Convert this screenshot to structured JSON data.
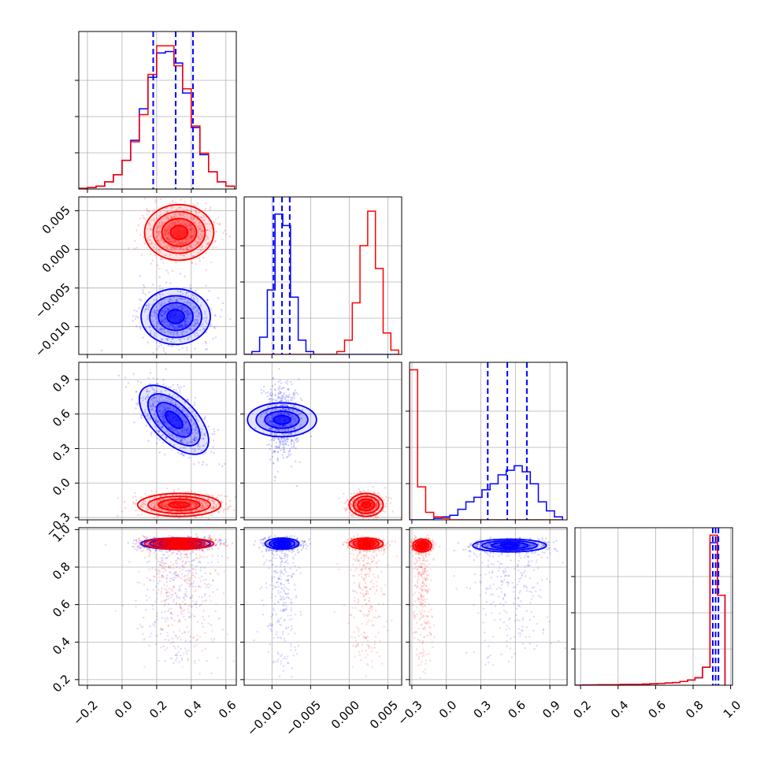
{
  "colors": {
    "series_a": "#0000ff",
    "series_b": "#ff0000",
    "grid": "#b0b0b0",
    "frame": "#000000"
  },
  "chart_data": {
    "type": "scatter",
    "layout": "corner-plot",
    "grid": true,
    "series": [
      {
        "color": "#0000ff",
        "role": "blue posterior (contours, scatter, histograms, dashed quantile lines)"
      },
      {
        "color": "#ff0000",
        "role": "red posterior (contours, scatter, histograms)"
      }
    ],
    "variables": [
      {
        "range": [
          -0.25,
          0.66
        ],
        "ticks": [
          -0.2,
          0.0,
          0.2,
          0.4,
          0.6
        ],
        "tick_labels": [
          "−0.2",
          "0.0",
          "0.2",
          "0.4",
          "0.6"
        ]
      },
      {
        "range": [
          -0.0136,
          0.0068
        ],
        "ticks": [
          -0.01,
          -0.005,
          0.0,
          0.005
        ],
        "tick_labels": [
          "−0.010",
          "−0.005",
          "0.000",
          "0.005"
        ]
      },
      {
        "range": [
          -0.32,
          1.05
        ],
        "ticks": [
          -0.3,
          0.0,
          0.3,
          0.6,
          0.9
        ],
        "tick_labels": [
          "−0.3",
          "0.0",
          "0.3",
          "0.6",
          "0.9"
        ]
      },
      {
        "range": [
          0.17,
          1.01
        ],
        "ticks": [
          0.2,
          0.4,
          0.6,
          0.8,
          1.0
        ],
        "tick_labels": [
          "0.2",
          "0.4",
          "0.6",
          "0.8",
          "1.0"
        ]
      }
    ],
    "marginals": [
      {
        "edges": [
          -0.25,
          -0.2,
          -0.15,
          -0.1,
          -0.05,
          0.0,
          0.05,
          0.1,
          0.15,
          0.2,
          0.25,
          0.3,
          0.35,
          0.4,
          0.45,
          0.5,
          0.55,
          0.6,
          0.65
        ],
        "counts_a": [
          0.005,
          0.01,
          0.02,
          0.05,
          0.1,
          0.2,
          0.34,
          0.56,
          0.78,
          0.95,
          0.96,
          0.88,
          0.67,
          0.43,
          0.24,
          0.12,
          0.05,
          0.02
        ],
        "counts_b": [
          0.005,
          0.01,
          0.02,
          0.05,
          0.1,
          0.2,
          0.33,
          0.52,
          0.8,
          1.0,
          1.0,
          0.86,
          0.7,
          0.44,
          0.25,
          0.12,
          0.05,
          0.02
        ],
        "quantiles": [
          0.18,
          0.31,
          0.41
        ],
        "ymax": 1.1
      },
      {
        "edges": [
          -0.0136,
          -0.0126,
          -0.0116,
          -0.0106,
          -0.0096,
          -0.0086,
          -0.0076,
          -0.0066,
          -0.0056,
          -0.0046,
          -0.0036,
          -0.0026,
          -0.0016,
          -0.0006,
          0.0004,
          0.0014,
          0.0024,
          0.0034,
          0.0044,
          0.0054,
          0.0064
        ],
        "counts_a": [
          0.0,
          0.02,
          0.12,
          0.45,
          0.98,
          0.9,
          0.4,
          0.1,
          0.02,
          0,
          0,
          0,
          0,
          0,
          0,
          0,
          0,
          0,
          0,
          0
        ],
        "counts_b": [
          0,
          0,
          0,
          0,
          0,
          0,
          0,
          0,
          0,
          0,
          0,
          0,
          0.02,
          0.1,
          0.36,
          0.76,
          1.0,
          0.6,
          0.15,
          0.03
        ],
        "quantiles": [
          -0.0098,
          -0.0087,
          -0.0077
        ],
        "ymax": 1.1
      },
      {
        "edges": [
          -0.32,
          -0.25,
          -0.18,
          -0.11,
          -0.04,
          0.03,
          0.1,
          0.17,
          0.24,
          0.31,
          0.38,
          0.45,
          0.52,
          0.59,
          0.66,
          0.73,
          0.8,
          0.87,
          0.94,
          1.01
        ],
        "counts_a": [
          0,
          0,
          0,
          0.01,
          0.02,
          0.03,
          0.07,
          0.12,
          0.15,
          0.2,
          0.24,
          0.3,
          0.33,
          0.36,
          0.32,
          0.24,
          0.12,
          0.06,
          0.02
        ],
        "counts_b": [
          1.0,
          0.22,
          0.05,
          0.02,
          0.01,
          0,
          0,
          0,
          0,
          0,
          0,
          0,
          0,
          0,
          0,
          0,
          0,
          0,
          0
        ],
        "quantiles": [
          0.36,
          0.53,
          0.7
        ],
        "ymax": 1.05
      },
      {
        "edges": [
          0.17,
          0.21,
          0.25,
          0.29,
          0.33,
          0.37,
          0.41,
          0.45,
          0.49,
          0.53,
          0.57,
          0.61,
          0.65,
          0.69,
          0.73,
          0.77,
          0.81,
          0.85,
          0.89,
          0.93,
          0.97
        ],
        "counts_a": [
          0.0,
          0.002,
          0.002,
          0.003,
          0.003,
          0.004,
          0.005,
          0.006,
          0.006,
          0.008,
          0.01,
          0.012,
          0.015,
          0.018,
          0.025,
          0.035,
          0.05,
          0.12,
          0.95,
          0.6
        ],
        "counts_b": [
          0.0,
          0.002,
          0.002,
          0.003,
          0.003,
          0.004,
          0.005,
          0.006,
          0.006,
          0.008,
          0.01,
          0.012,
          0.015,
          0.018,
          0.025,
          0.035,
          0.05,
          0.12,
          1.0,
          0.6
        ],
        "quantiles": [
          0.905,
          0.92,
          0.935
        ],
        "ymax": 1.05
      }
    ],
    "joint_blobs": [
      {
        "row": 1,
        "col": 0,
        "a": {
          "mean": [
            0.31,
            -0.0087
          ],
          "sd": [
            0.1,
            0.0018
          ]
        },
        "b": {
          "mean": [
            0.33,
            0.0022
          ],
          "sd": [
            0.1,
            0.0018
          ]
        }
      },
      {
        "row": 2,
        "col": 0,
        "a": {
          "mean": [
            0.3,
            0.55
          ],
          "sd": [
            0.1,
            0.15
          ],
          "rho": -0.6
        },
        "b": {
          "mean": [
            0.33,
            -0.19
          ],
          "sd": [
            0.12,
            0.05
          ]
        }
      },
      {
        "row": 2,
        "col": 1,
        "a": {
          "mean": [
            -0.0087,
            0.55
          ],
          "sd": [
            0.0011,
            0.15
          ]
        },
        "b": {
          "mean": [
            0.0022,
            -0.19
          ],
          "sd": [
            0.0011,
            0.05
          ]
        }
      },
      {
        "row": 3,
        "col": 0,
        "a": {
          "mean": [
            0.31,
            0.925
          ],
          "sd": [
            0.1,
            0.015
          ]
        },
        "b": {
          "mean": [
            0.33,
            0.925
          ],
          "sd": [
            0.1,
            0.015
          ]
        }
      },
      {
        "row": 3,
        "col": 1,
        "a": {
          "mean": [
            -0.0087,
            0.925
          ],
          "sd": [
            0.0011,
            0.015
          ]
        },
        "b": {
          "mean": [
            0.0022,
            0.925
          ],
          "sd": [
            0.0011,
            0.015
          ]
        }
      },
      {
        "row": 3,
        "col": 2,
        "a": {
          "mean": [
            0.55,
            0.915
          ],
          "sd": [
            0.16,
            0.017
          ]
        },
        "b": {
          "mean": [
            -0.21,
            0.915
          ],
          "sd": [
            0.04,
            0.017
          ]
        }
      }
    ]
  }
}
